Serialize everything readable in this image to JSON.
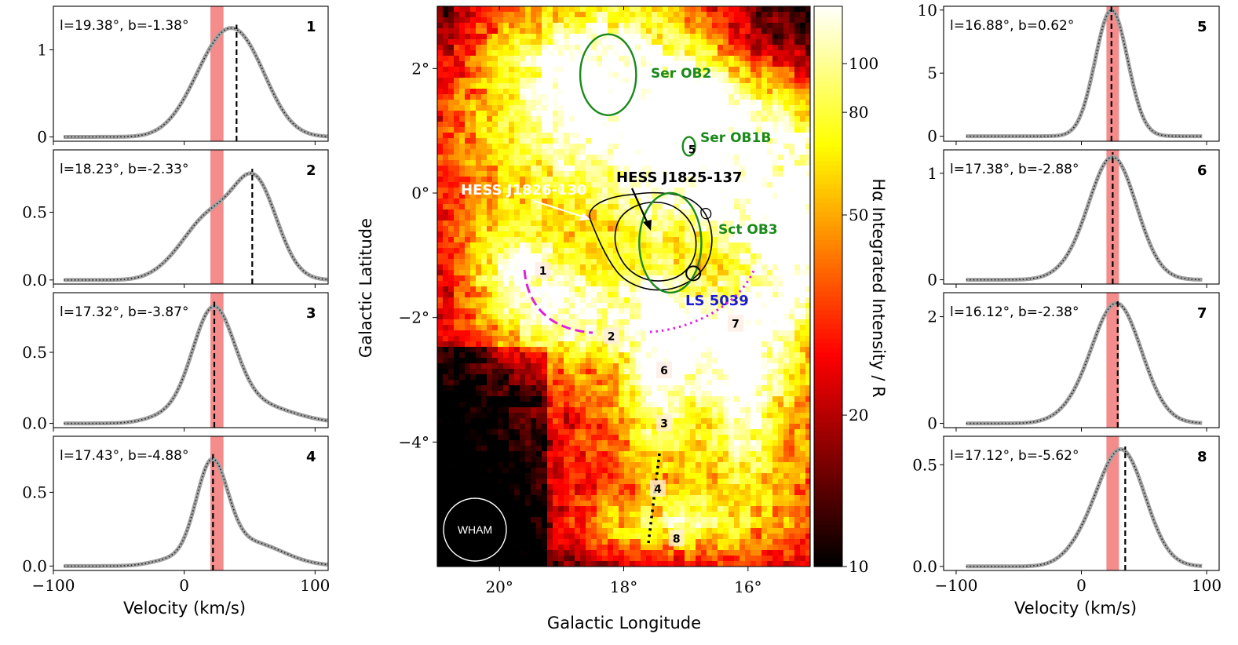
{
  "figure": {
    "velocity_label": "Velocity (km/s)",
    "map_xlabel": "Galactic Longitude",
    "map_ylabel": "Galactic Latitude",
    "colorbar_label": "Hα Integrated Intensity / R",
    "beam_label": "WHAM",
    "colors": {
      "profile": "#a0a0a0",
      "fit": "#222222",
      "band": "#f47f7f",
      "ob": "#1a8a1a",
      "ls": "#1a1ad8",
      "magenta": "#e020e0"
    }
  },
  "chart_data": [
    {
      "type": "line",
      "panel": "1",
      "title": "l=19.38°, b=-1.38°",
      "xlim": [
        -100,
        110
      ],
      "ylim": [
        -0.05,
        1.5
      ],
      "yticks": [
        0,
        1
      ],
      "ytick_labels": [
        "0",
        "1"
      ],
      "xticks": [
        -100,
        0,
        100
      ],
      "xtick_labels": [
        "−100",
        "0",
        "100"
      ],
      "band": [
        20,
        30
      ],
      "peak_velocity": 40,
      "components": [
        {
          "amp": 0.58,
          "v": 20,
          "sig": 18
        },
        {
          "amp": 0.95,
          "v": 45,
          "sig": 20
        },
        {
          "amp": 0.06,
          "v": -5,
          "sig": 15
        }
      ]
    },
    {
      "type": "line",
      "panel": "2",
      "title": "l=18.23°, b=-2.33°",
      "xlim": [
        -100,
        110
      ],
      "ylim": [
        -0.03,
        0.96
      ],
      "yticks": [
        0,
        0.5
      ],
      "ytick_labels": [
        "0.0",
        "0.5"
      ],
      "xticks": [
        -100,
        0,
        100
      ],
      "xtick_labels": [
        "−100",
        "0",
        "100"
      ],
      "band": [
        20,
        30
      ],
      "peak_velocity": 52,
      "components": [
        {
          "amp": 0.42,
          "v": 18,
          "sig": 18
        },
        {
          "amp": 0.72,
          "v": 54,
          "sig": 17
        },
        {
          "amp": 0.06,
          "v": -10,
          "sig": 15
        }
      ]
    },
    {
      "type": "line",
      "panel": "3",
      "title": "l=17.32°, b=-3.87°",
      "xlim": [
        -100,
        110
      ],
      "ylim": [
        -0.03,
        0.92
      ],
      "yticks": [
        0,
        0.5
      ],
      "ytick_labels": [
        "0.0",
        "0.5"
      ],
      "xticks": [
        -100,
        0,
        100
      ],
      "xtick_labels": [
        "−100",
        "0",
        "100"
      ],
      "band": [
        20,
        30
      ],
      "peak_velocity": 23,
      "components": [
        {
          "amp": 0.73,
          "v": 22,
          "sig": 16
        },
        {
          "amp": 0.14,
          "v": 50,
          "sig": 30
        },
        {
          "amp": 0.04,
          "v": -15,
          "sig": 15
        }
      ]
    },
    {
      "type": "line",
      "panel": "4",
      "title": "l=17.43°, b=-4.88°",
      "xlim": [
        -100,
        110
      ],
      "ylim": [
        -0.03,
        0.88
      ],
      "yticks": [
        0,
        0.5
      ],
      "ytick_labels": [
        "0.0",
        "0.5"
      ],
      "xticks": [
        -100,
        0,
        100
      ],
      "xtick_labels": [
        "−100",
        "0",
        "100"
      ],
      "band": [
        20,
        30
      ],
      "peak_velocity": 22,
      "components": [
        {
          "amp": 0.64,
          "v": 21,
          "sig": 12
        },
        {
          "amp": 0.16,
          "v": 50,
          "sig": 25
        },
        {
          "amp": 0.04,
          "v": -10,
          "sig": 15
        }
      ]
    },
    {
      "type": "line",
      "panel": "5",
      "title": "l=16.88°, b=0.62°",
      "xlim": [
        -110,
        110
      ],
      "ylim": [
        -0.4,
        10.3
      ],
      "yticks": [
        0,
        5,
        10
      ],
      "ytick_labels": [
        "0",
        "5",
        "10"
      ],
      "xticks": [
        -100,
        0,
        100
      ],
      "xtick_labels": [
        "−100",
        "0",
        "100"
      ],
      "band": [
        20,
        30
      ],
      "peak_velocity": 24,
      "components": [
        {
          "amp": 10.0,
          "v": 24,
          "sig": 13
        }
      ]
    },
    {
      "type": "line",
      "panel": "6",
      "title": "l=17.38°, b=-2.88°",
      "xlim": [
        -110,
        110
      ],
      "ylim": [
        -0.04,
        1.22
      ],
      "yticks": [
        0,
        1
      ],
      "ytick_labels": [
        "0",
        "1"
      ],
      "xticks": [
        -100,
        0,
        100
      ],
      "xtick_labels": [
        "−100",
        "0",
        "100"
      ],
      "band": [
        20,
        30
      ],
      "peak_velocity": 25,
      "components": [
        {
          "amp": 1.15,
          "v": 25,
          "sig": 19
        },
        {
          "amp": 0.05,
          "v": -10,
          "sig": 15
        }
      ]
    },
    {
      "type": "line",
      "panel": "7",
      "title": "l=16.12°, b=-2.38°",
      "xlim": [
        -110,
        110
      ],
      "ylim": [
        -0.08,
        2.45
      ],
      "yticks": [
        0,
        2
      ],
      "ytick_labels": [
        "0",
        "2"
      ],
      "xticks": [
        -100,
        0,
        100
      ],
      "xtick_labels": [
        "−100",
        "0",
        "100"
      ],
      "band": [
        20,
        30
      ],
      "peak_velocity": 29,
      "components": [
        {
          "amp": 2.25,
          "v": 28,
          "sig": 20
        },
        {
          "amp": 0.1,
          "v": -10,
          "sig": 15
        }
      ]
    },
    {
      "type": "line",
      "panel": "8",
      "title": "l=17.12°, b=-5.62°",
      "xlim": [
        -110,
        110
      ],
      "ylim": [
        -0.02,
        0.64
      ],
      "yticks": [
        0,
        0.5
      ],
      "ytick_labels": [
        "0.0",
        "0.5"
      ],
      "xticks": [
        -100,
        0,
        100
      ],
      "xtick_labels": [
        "−100",
        "0",
        "100"
      ],
      "band": [
        20,
        30
      ],
      "peak_velocity": 35,
      "components": [
        {
          "amp": 0.57,
          "v": 32,
          "sig": 19
        },
        {
          "amp": 0.06,
          "v": 0,
          "sig": 15
        }
      ]
    },
    {
      "type": "heatmap",
      "panel": "map",
      "xlabel": "Galactic Longitude",
      "ylabel": "Galactic Latitude",
      "colorbar_label": "Hα Integrated Intensity / R",
      "xlim": [
        21.0,
        15.0
      ],
      "ylim": [
        -6.0,
        3.0
      ],
      "xticks": [
        20,
        18,
        16
      ],
      "xtick_labels": [
        "20°",
        "18°",
        "16°"
      ],
      "yticks": [
        2,
        0,
        -2,
        -4
      ],
      "ytick_labels": [
        "2°",
        "0°",
        "−2°",
        "−4°"
      ],
      "colorbar_range": [
        10,
        130
      ],
      "colorbar_scale": "log",
      "colorbar_ticks": [
        10,
        20,
        50,
        80,
        100
      ],
      "colorbar_tick_labels": [
        "10",
        "20",
        "50",
        "80",
        "100"
      ],
      "colormap": "hot",
      "bright_regions": [
        {
          "l": 18.3,
          "b": 1.8,
          "dl": 1.1,
          "db": 0.9,
          "amp": 140
        },
        {
          "l": 17.0,
          "b": 1.3,
          "dl": 0.6,
          "db": 0.4,
          "amp": 110
        },
        {
          "l": 16.0,
          "b": 0.6,
          "dl": 1.2,
          "db": 0.7,
          "amp": 120
        },
        {
          "l": 15.4,
          "b": -0.6,
          "dl": 0.6,
          "db": 0.5,
          "amp": 130
        },
        {
          "l": 17.0,
          "b": 0.1,
          "dl": 0.7,
          "db": 0.6,
          "amp": 55
        },
        {
          "l": 18.8,
          "b": -1.9,
          "dl": 0.9,
          "db": 0.5,
          "amp": 85
        },
        {
          "l": 19.7,
          "b": -1.1,
          "dl": 0.4,
          "db": 0.5,
          "amp": 80
        },
        {
          "l": 16.3,
          "b": -2.3,
          "dl": 0.8,
          "db": 0.6,
          "amp": 110
        },
        {
          "l": 16.1,
          "b": -3.2,
          "dl": 0.3,
          "db": 0.7,
          "amp": 85
        },
        {
          "l": 17.45,
          "b": -2.6,
          "dl": 0.3,
          "db": 0.9,
          "amp": 95
        },
        {
          "l": 17.2,
          "b": -5.3,
          "dl": 0.9,
          "db": 0.3,
          "amp": 55
        },
        {
          "l": 15.2,
          "b": -1.5,
          "dl": 0.4,
          "db": 0.4,
          "amp": 90
        },
        {
          "l": 17.2,
          "b": -3.5,
          "dl": 1.4,
          "db": 1.6,
          "amp": 32
        },
        {
          "l": 19.0,
          "b": 0.3,
          "dl": 1.5,
          "db": 1.3,
          "amp": 35
        },
        {
          "l": 15.6,
          "b": -4.5,
          "dl": 1.0,
          "db": 1.2,
          "amp": 28
        }
      ],
      "regions": [
        {
          "label": "1",
          "l": 19.3,
          "b": -1.25
        },
        {
          "label": "2",
          "l": 18.2,
          "b": -2.3
        },
        {
          "label": "3",
          "l": 17.35,
          "b": -3.7
        },
        {
          "label": "4",
          "l": 17.45,
          "b": -4.75
        },
        {
          "label": "5",
          "l": 16.9,
          "b": 0.7
        },
        {
          "label": "6",
          "l": 17.35,
          "b": -2.85
        },
        {
          "label": "7",
          "l": 16.2,
          "b": -2.1
        },
        {
          "label": "8",
          "l": 17.15,
          "b": -5.55
        }
      ],
      "ob_associations": [
        {
          "name": "Ser OB2",
          "l": 18.25,
          "b": 1.9,
          "rl": 0.45,
          "rb": 0.65
        },
        {
          "name": "Ser OB1B",
          "l": 16.95,
          "b": 0.75,
          "rl": 0.1,
          "rb": 0.15
        },
        {
          "name": "Sct OB3",
          "l": 17.25,
          "b": -0.8,
          "rl": 0.5,
          "rb": 0.8
        }
      ],
      "annotations": [
        {
          "label": "HESS J1826-130",
          "color": "white"
        },
        {
          "label": "HESS J1825-137",
          "color": "black"
        },
        {
          "label": "LS 5039",
          "color": "blue",
          "l": 16.88,
          "b": -1.29
        }
      ]
    }
  ]
}
